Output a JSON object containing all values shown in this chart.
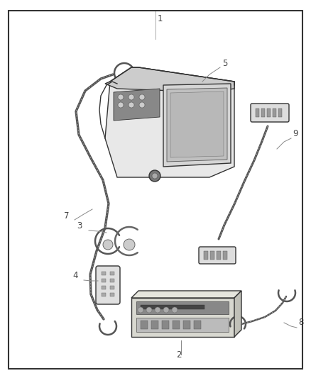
{
  "background_color": "#ffffff",
  "border_color": "#333333",
  "border_linewidth": 1.5,
  "fig_width": 4.38,
  "fig_height": 5.33,
  "dpi": 100,
  "line_color": "#333333",
  "line_lw": 1.0,
  "thin_lw": 0.6,
  "wire_lw": 1.8,
  "label_color": "#444444",
  "label_fontsize": 8.5,
  "leader_color": "#888888",
  "leader_lw": 0.7
}
